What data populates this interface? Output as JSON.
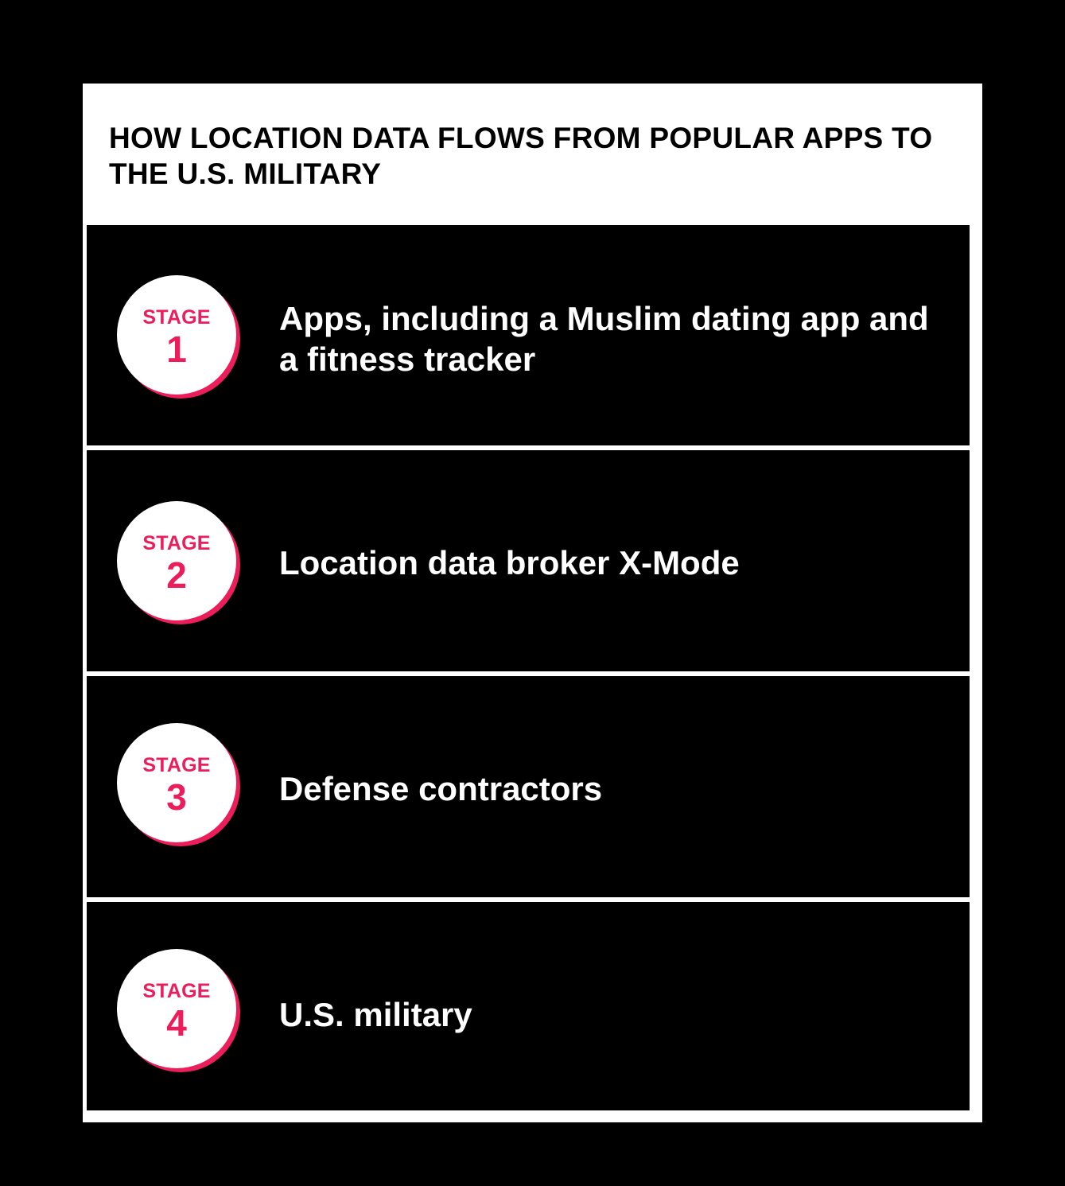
{
  "title": "HOW LOCATION DATA FLOWS FROM POPULAR APPS TO THE U.S. MILITARY",
  "colors": {
    "background": "#000000",
    "panel": "#ffffff",
    "accent": "#ec1d5b",
    "stage_text": "#ffffff"
  },
  "stages": [
    {
      "label": "STAGE",
      "number": "1",
      "text": "Apps, including a Muslim dating app and a fitness tracker"
    },
    {
      "label": "STAGE",
      "number": "2",
      "text": "Location data broker X-Mode"
    },
    {
      "label": "STAGE",
      "number": "3",
      "text": "Defense contractors"
    },
    {
      "label": "STAGE",
      "number": "4",
      "text": "U.S. military"
    }
  ]
}
